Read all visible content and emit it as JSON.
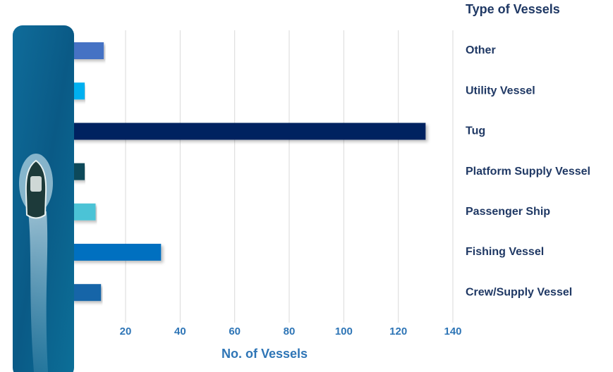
{
  "chart_data": {
    "type": "barh",
    "legend_title": "Type of Vessels",
    "x_label": "No. of Vessels",
    "categories": [
      "Other",
      "Utility Vessel",
      "Tug",
      "Platform Supply Vessel",
      "Passenger Ship",
      "Fishing Vessel",
      "Crew/Supply Vessel"
    ],
    "values": [
      12,
      5,
      130,
      5,
      9,
      33,
      11
    ],
    "colors": [
      "#4472c4",
      "#00b0f0",
      "#002060",
      "#0b4a5a",
      "#4bc3d6",
      "#0070c0",
      "#1565a8"
    ],
    "xlim": [
      0,
      140
    ],
    "xticks": [
      20,
      40,
      60,
      80,
      100,
      120,
      140
    ],
    "grid": true
  }
}
